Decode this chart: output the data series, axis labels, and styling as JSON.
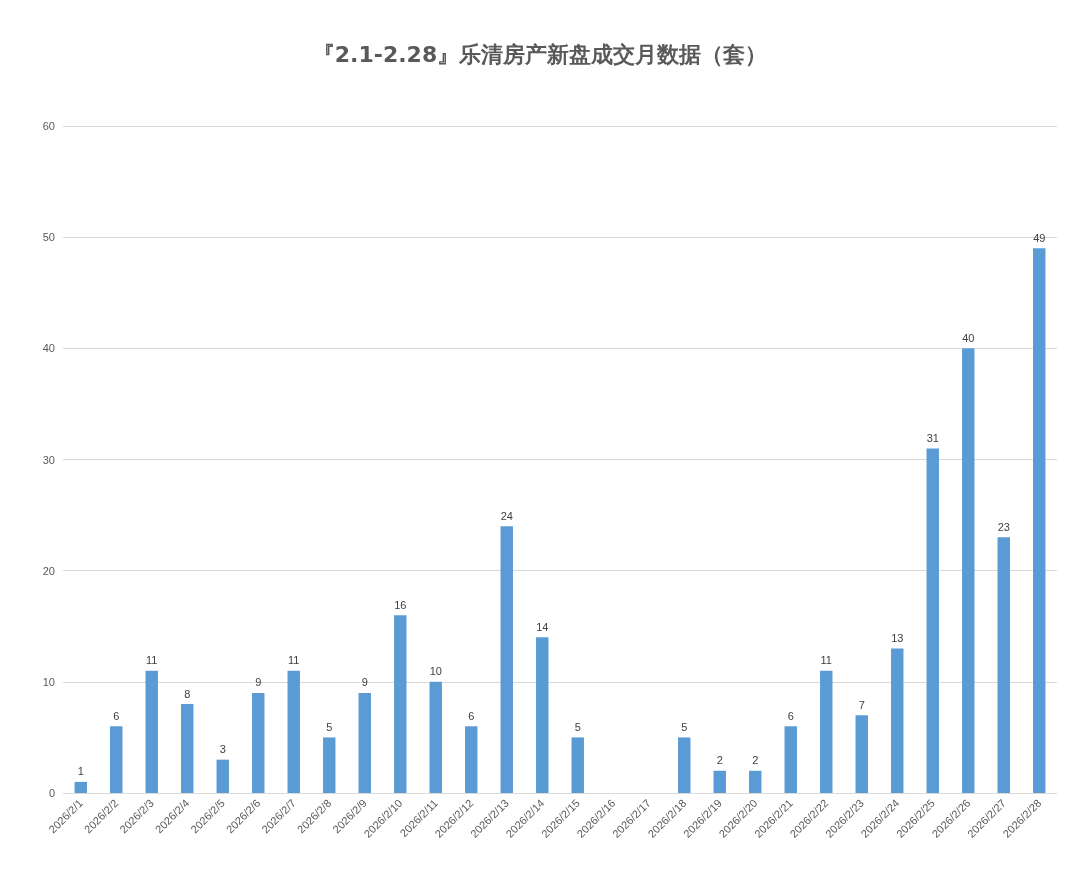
{
  "chart_data": {
    "type": "bar",
    "title": "『2.1-2.28』乐清房产新盘成交月数据（套）",
    "categories": [
      "2026/2/1",
      "2026/2/2",
      "2026/2/3",
      "2026/2/4",
      "2026/2/5",
      "2026/2/6",
      "2026/2/7",
      "2026/2/8",
      "2026/2/9",
      "2026/2/10",
      "2026/2/11",
      "2026/2/12",
      "2026/2/13",
      "2026/2/14",
      "2026/2/15",
      "2026/2/16",
      "2026/2/17",
      "2026/2/18",
      "2026/2/19",
      "2026/2/20",
      "2026/2/21",
      "2026/2/22",
      "2026/2/23",
      "2026/2/24",
      "2026/2/25",
      "2026/2/26",
      "2026/2/27",
      "2026/2/28"
    ],
    "values": [
      1,
      6,
      11,
      8,
      3,
      9,
      11,
      5,
      9,
      16,
      10,
      6,
      24,
      14,
      5,
      null,
      null,
      5,
      2,
      2,
      6,
      11,
      7,
      13,
      31,
      40,
      23,
      49
    ],
    "color": "#5b9bd5",
    "ylim": [
      0,
      60
    ],
    "yticks": [
      0,
      10,
      20,
      30,
      40,
      50,
      60
    ],
    "grid": "y",
    "data_labels": true
  }
}
